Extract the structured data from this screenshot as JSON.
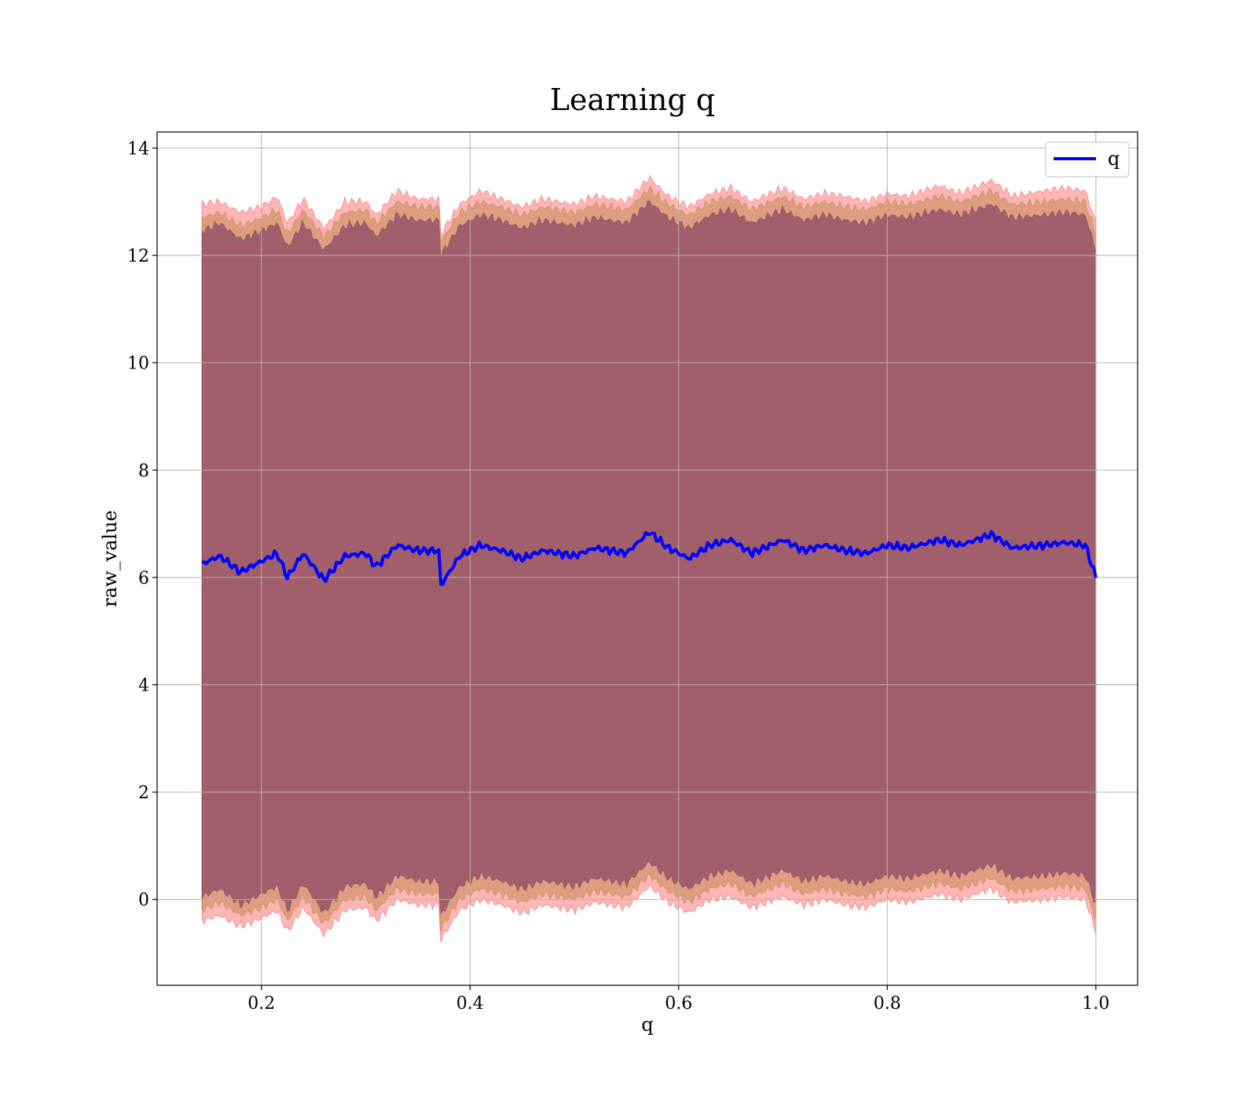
{
  "chart_data": {
    "type": "line",
    "title": "Learning q",
    "xlabel": "q",
    "ylabel": "raw_value",
    "xlim": [
      0.1,
      1.04
    ],
    "ylim": [
      -1.6,
      14.3
    ],
    "x_ticks": [
      0.2,
      0.4,
      0.6,
      0.8,
      1.0
    ],
    "x_tick_labels": [
      "0.2",
      "0.4",
      "0.6",
      "0.8",
      "1.0"
    ],
    "y_ticks": [
      0,
      2,
      4,
      6,
      8,
      10,
      12,
      14
    ],
    "y_tick_labels": [
      "0",
      "2",
      "4",
      "6",
      "8",
      "10",
      "12",
      "14"
    ],
    "grid": true,
    "legend": {
      "position": "top-right",
      "entries": [
        "q"
      ]
    },
    "colors": {
      "line": "#0000ff",
      "band_outer": "#ff6e6e",
      "band_mid": "#c88c5a",
      "band_inner": "#8c4b64",
      "grid": "#b0b0b0"
    },
    "x_range": [
      0.143,
      1.0
    ],
    "series": [
      {
        "name": "q",
        "x": [
          0.143,
          0.16,
          0.18,
          0.2,
          0.215,
          0.225,
          0.24,
          0.26,
          0.28,
          0.3,
          0.31,
          0.33,
          0.35,
          0.37,
          0.372,
          0.39,
          0.41,
          0.43,
          0.45,
          0.47,
          0.5,
          0.52,
          0.55,
          0.572,
          0.59,
          0.61,
          0.63,
          0.65,
          0.67,
          0.7,
          0.72,
          0.74,
          0.76,
          0.78,
          0.8,
          0.82,
          0.85,
          0.87,
          0.9,
          0.92,
          0.95,
          0.97,
          0.99,
          1.0
        ],
        "y": [
          6.25,
          6.4,
          6.1,
          6.3,
          6.45,
          6.0,
          6.45,
          5.95,
          6.4,
          6.45,
          6.2,
          6.6,
          6.5,
          6.5,
          5.85,
          6.4,
          6.6,
          6.5,
          6.35,
          6.5,
          6.4,
          6.55,
          6.45,
          6.85,
          6.55,
          6.35,
          6.6,
          6.7,
          6.45,
          6.7,
          6.5,
          6.6,
          6.5,
          6.45,
          6.6,
          6.55,
          6.7,
          6.6,
          6.8,
          6.55,
          6.6,
          6.65,
          6.6,
          6.0
        ]
      }
    ],
    "bands": [
      {
        "upper": [
          12.95,
          13.0,
          12.8,
          12.9,
          13.1,
          12.6,
          13.05,
          12.5,
          13.0,
          13.0,
          12.75,
          13.2,
          13.05,
          13.05,
          12.4,
          12.95,
          13.2,
          13.05,
          12.9,
          13.05,
          12.95,
          13.1,
          13.0,
          13.45,
          13.1,
          12.9,
          13.15,
          13.25,
          13.0,
          13.25,
          13.05,
          13.15,
          13.1,
          13.0,
          13.15,
          13.1,
          13.3,
          13.15,
          13.4,
          13.1,
          13.2,
          13.25,
          13.2,
          12.6
        ],
        "lower": [
          -0.4,
          -0.3,
          -0.5,
          -0.35,
          -0.2,
          -0.6,
          -0.15,
          -0.65,
          -0.2,
          -0.15,
          -0.4,
          0.0,
          -0.1,
          -0.1,
          -0.75,
          -0.2,
          0.0,
          -0.1,
          -0.25,
          -0.1,
          -0.2,
          -0.05,
          -0.15,
          0.25,
          -0.05,
          -0.25,
          0.0,
          0.05,
          -0.15,
          0.05,
          -0.1,
          0.0,
          -0.1,
          -0.15,
          0.0,
          -0.05,
          0.1,
          0.0,
          0.2,
          -0.05,
          0.0,
          0.05,
          0.0,
          -0.6
        ]
      },
      {
        "upper": [
          12.7,
          12.8,
          12.55,
          12.7,
          12.85,
          12.4,
          12.85,
          12.35,
          12.8,
          12.85,
          12.6,
          13.0,
          12.9,
          12.9,
          12.25,
          12.8,
          13.0,
          12.9,
          12.75,
          12.9,
          12.8,
          12.95,
          12.85,
          13.25,
          12.95,
          12.75,
          13.0,
          13.1,
          12.85,
          13.1,
          12.9,
          13.0,
          12.9,
          12.85,
          13.0,
          12.95,
          13.1,
          13.0,
          13.2,
          12.95,
          13.0,
          13.05,
          13.0,
          12.4
        ],
        "lower": [
          -0.2,
          -0.05,
          -0.3,
          -0.15,
          0.0,
          -0.4,
          0.05,
          -0.45,
          0.0,
          0.05,
          -0.2,
          0.2,
          0.1,
          0.1,
          -0.55,
          0.0,
          0.2,
          0.1,
          -0.05,
          0.1,
          0.0,
          0.15,
          0.05,
          0.45,
          0.15,
          -0.05,
          0.2,
          0.3,
          0.05,
          0.3,
          0.1,
          0.2,
          0.1,
          0.05,
          0.2,
          0.15,
          0.3,
          0.2,
          0.4,
          0.15,
          0.2,
          0.25,
          0.2,
          -0.4
        ]
      },
      {
        "upper": [
          12.45,
          12.6,
          12.3,
          12.45,
          12.6,
          12.15,
          12.6,
          12.1,
          12.55,
          12.6,
          12.35,
          12.75,
          12.65,
          12.65,
          12.0,
          12.55,
          12.75,
          12.65,
          12.5,
          12.65,
          12.55,
          12.7,
          12.6,
          13.0,
          12.7,
          12.5,
          12.75,
          12.85,
          12.6,
          12.85,
          12.65,
          12.75,
          12.65,
          12.6,
          12.75,
          12.7,
          12.85,
          12.75,
          12.95,
          12.7,
          12.75,
          12.8,
          12.75,
          12.1
        ],
        "lower": [
          0.05,
          0.2,
          -0.1,
          0.1,
          0.25,
          -0.2,
          0.3,
          -0.25,
          0.25,
          0.3,
          0.05,
          0.45,
          0.35,
          0.35,
          -0.3,
          0.25,
          0.45,
          0.35,
          0.2,
          0.35,
          0.25,
          0.4,
          0.3,
          0.7,
          0.4,
          0.2,
          0.45,
          0.55,
          0.3,
          0.55,
          0.35,
          0.45,
          0.35,
          0.3,
          0.45,
          0.4,
          0.55,
          0.45,
          0.65,
          0.4,
          0.45,
          0.5,
          0.45,
          -0.1
        ]
      }
    ]
  }
}
